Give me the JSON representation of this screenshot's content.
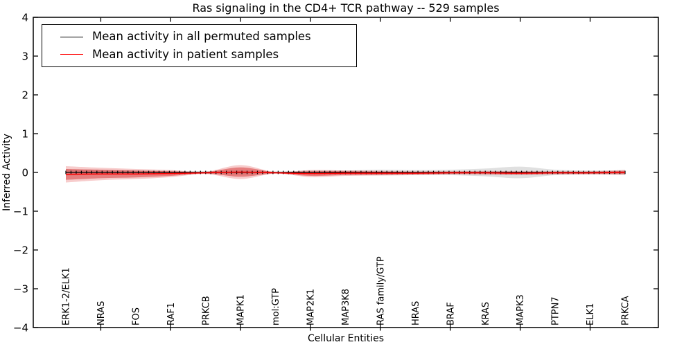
{
  "chart_data": {
    "type": "line",
    "title": "Ras signaling in the CD4+ TCR pathway -- 529 samples",
    "xlabel": "Cellular Entities",
    "ylabel": "Inferred Activity",
    "ylim": [
      -4,
      4
    ],
    "grid": false,
    "legend_position": "upper left",
    "ytick_labels": [
      "4",
      "3",
      "2",
      "1",
      "0",
      "−1",
      "−2",
      "−3",
      "−4"
    ],
    "categories": [
      "ERK1-2/ELK1",
      "NRAS",
      "FOS",
      "RAF1",
      "PRKCB",
      "MAPK1",
      "mol:GTP",
      "MAP2K1",
      "MAP3K8",
      "RAS family/GTP",
      "HRAS",
      "BRAF",
      "KRAS",
      "MAPK3",
      "PTPN7",
      "ELK1",
      "PRKCA"
    ],
    "xtick_indices": [
      1,
      3,
      5,
      7,
      9,
      11,
      13,
      15
    ],
    "axis_color": "#000000",
    "series": [
      {
        "name": "Mean activity in all permuted samples",
        "color": "#000000",
        "marker": "|",
        "values": [
          0,
          0,
          0,
          0,
          0,
          0,
          0,
          0,
          0,
          0,
          0,
          0,
          0,
          0,
          0,
          0,
          0
        ]
      },
      {
        "name": "Mean activity in patient samples",
        "color": "#ff0000",
        "marker": null,
        "values": [
          -0.05,
          -0.04,
          -0.04,
          -0.03,
          -0.01,
          0.01,
          -0.01,
          -0.03,
          -0.02,
          -0.02,
          -0.02,
          -0.01,
          -0.01,
          -0.02,
          -0.01,
          -0.01,
          0
        ]
      }
    ],
    "bands": [
      {
        "name": "permuted-samples-spread",
        "color": "#999999",
        "opacity": 0.3,
        "upper": [
          0.08,
          0.06,
          0.05,
          0.04,
          0.03,
          0.05,
          0.02,
          0.05,
          0.05,
          0.07,
          0.06,
          0.07,
          0.1,
          0.15,
          0.07,
          0.05,
          0.06
        ],
        "lower": [
          -0.08,
          -0.06,
          -0.05,
          -0.04,
          -0.03,
          -0.05,
          -0.02,
          -0.05,
          -0.05,
          -0.07,
          -0.06,
          -0.07,
          -0.1,
          -0.15,
          -0.07,
          -0.05,
          -0.06
        ]
      },
      {
        "name": "patient-samples-spread-outer",
        "color": "#e03434",
        "opacity": 0.25,
        "upper": [
          0.16,
          0.12,
          0.09,
          0.06,
          0.02,
          0.19,
          0.01,
          0.06,
          0.05,
          0.04,
          0.03,
          0.03,
          0.04,
          0.03,
          0.03,
          0.03,
          0.06
        ],
        "lower": [
          -0.26,
          -0.2,
          -0.17,
          -0.12,
          -0.04,
          -0.17,
          -0.03,
          -0.12,
          -0.09,
          -0.08,
          -0.07,
          -0.05,
          -0.06,
          -0.07,
          -0.05,
          -0.05,
          -0.06
        ]
      },
      {
        "name": "patient-samples-spread-inner",
        "color": "#d62f2f",
        "opacity": 0.5,
        "upper": [
          0.09,
          0.07,
          0.05,
          0.03,
          0.01,
          0.13,
          0.01,
          0.03,
          0.03,
          0.02,
          0.01,
          0.02,
          0.02,
          0.02,
          0.02,
          0.02,
          0.04
        ],
        "lower": [
          -0.19,
          -0.15,
          -0.13,
          -0.09,
          -0.03,
          -0.11,
          -0.03,
          -0.09,
          -0.07,
          -0.06,
          -0.05,
          -0.04,
          -0.04,
          -0.05,
          -0.04,
          -0.04,
          -0.04
        ]
      }
    ]
  }
}
